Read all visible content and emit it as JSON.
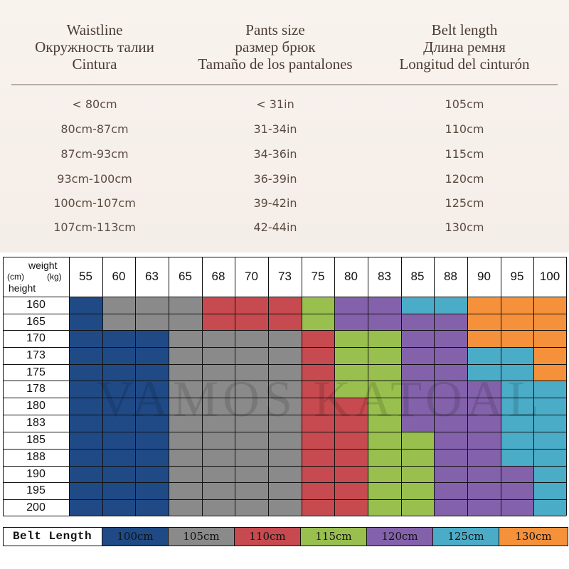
{
  "size_table": {
    "headers": [
      {
        "lines": [
          "Waistline",
          "Окружность талии",
          "Cintura"
        ]
      },
      {
        "lines": [
          "Pants size",
          "размер брюк",
          "Tamaño de los pantalones"
        ]
      },
      {
        "lines": [
          "Belt length",
          "Длина ремня",
          "Longitud del cinturón"
        ]
      }
    ],
    "rows": [
      [
        "< 80cm",
        "< 31in",
        "105cm"
      ],
      [
        "80cm-87cm",
        "31-34in",
        "110cm"
      ],
      [
        "87cm-93cm",
        "34-36in",
        "115cm"
      ],
      [
        "93cm-100cm",
        "36-39in",
        "120cm"
      ],
      [
        "100cm-107cm",
        "39-42in",
        "125cm"
      ],
      [
        "107cm-113cm",
        "42-44in",
        "130cm"
      ]
    ]
  },
  "grid": {
    "corner": {
      "weight": "weight",
      "kg": "(kg)",
      "cm": "(cm)",
      "height": "height"
    },
    "weights": [
      "55",
      "60",
      "63",
      "65",
      "68",
      "70",
      "73",
      "75",
      "80",
      "83",
      "85",
      "88",
      "90",
      "95",
      "100"
    ],
    "heights": [
      "160",
      "165",
      "170",
      "173",
      "175",
      "178",
      "180",
      "183",
      "185",
      "188",
      "190",
      "195",
      "200"
    ],
    "cells": [
      [
        "blue",
        "gray",
        "gray",
        "gray",
        "red",
        "red",
        "red",
        "green",
        "purple",
        "purple",
        "cyan",
        "cyan",
        "orange",
        "orange",
        "orange"
      ],
      [
        "blue",
        "gray",
        "gray",
        "gray",
        "red",
        "red",
        "red",
        "green",
        "purple",
        "purple",
        "purple",
        "purple",
        "orange",
        "orange",
        "orange"
      ],
      [
        "blue",
        "blue",
        "blue",
        "gray",
        "gray",
        "gray",
        "gray",
        "red",
        "green",
        "green",
        "purple",
        "purple",
        "orange",
        "orange",
        "orange"
      ],
      [
        "blue",
        "blue",
        "blue",
        "gray",
        "gray",
        "gray",
        "gray",
        "red",
        "green",
        "green",
        "purple",
        "purple",
        "cyan",
        "cyan",
        "orange"
      ],
      [
        "blue",
        "blue",
        "blue",
        "gray",
        "gray",
        "gray",
        "gray",
        "red",
        "green",
        "green",
        "purple",
        "purple",
        "cyan",
        "cyan",
        "orange"
      ],
      [
        "blue",
        "blue",
        "blue",
        "gray",
        "gray",
        "gray",
        "gray",
        "red",
        "green",
        "green",
        "purple",
        "purple",
        "purple",
        "cyan",
        "cyan"
      ],
      [
        "blue",
        "blue",
        "blue",
        "gray",
        "gray",
        "gray",
        "gray",
        "red",
        "red",
        "green",
        "purple",
        "purple",
        "purple",
        "cyan",
        "cyan"
      ],
      [
        "blue",
        "blue",
        "blue",
        "gray",
        "gray",
        "gray",
        "gray",
        "red",
        "red",
        "green",
        "purple",
        "purple",
        "purple",
        "cyan",
        "cyan"
      ],
      [
        "blue",
        "blue",
        "blue",
        "gray",
        "gray",
        "gray",
        "gray",
        "red",
        "red",
        "green",
        "green",
        "purple",
        "purple",
        "cyan",
        "cyan"
      ],
      [
        "blue",
        "blue",
        "blue",
        "gray",
        "gray",
        "gray",
        "gray",
        "red",
        "red",
        "green",
        "green",
        "purple",
        "purple",
        "cyan",
        "cyan"
      ],
      [
        "blue",
        "blue",
        "blue",
        "gray",
        "gray",
        "gray",
        "gray",
        "red",
        "red",
        "green",
        "green",
        "purple",
        "purple",
        "purple",
        "cyan"
      ],
      [
        "blue",
        "blue",
        "blue",
        "gray",
        "gray",
        "gray",
        "gray",
        "red",
        "red",
        "green",
        "green",
        "purple",
        "purple",
        "purple",
        "cyan"
      ],
      [
        "blue",
        "blue",
        "blue",
        "gray",
        "gray",
        "gray",
        "gray",
        "red",
        "red",
        "green",
        "green",
        "purple",
        "purple",
        "purple",
        "cyan"
      ]
    ]
  },
  "colors": {
    "blue": "#1f4a86",
    "gray": "#8a8a8a",
    "red": "#c64a4f",
    "green": "#99c04e",
    "purple": "#8462ab",
    "cyan": "#4bacc7",
    "orange": "#f5913b"
  },
  "legend": {
    "title": "Belt Length",
    "items": [
      {
        "label": "100cm",
        "color": "blue"
      },
      {
        "label": "105cm",
        "color": "gray"
      },
      {
        "label": "110cm",
        "color": "red"
      },
      {
        "label": "115cm",
        "color": "green"
      },
      {
        "label": "120cm",
        "color": "purple"
      },
      {
        "label": "125cm",
        "color": "cyan"
      },
      {
        "label": "130cm",
        "color": "orange"
      }
    ]
  },
  "watermark": "VAMOS KATOAL"
}
